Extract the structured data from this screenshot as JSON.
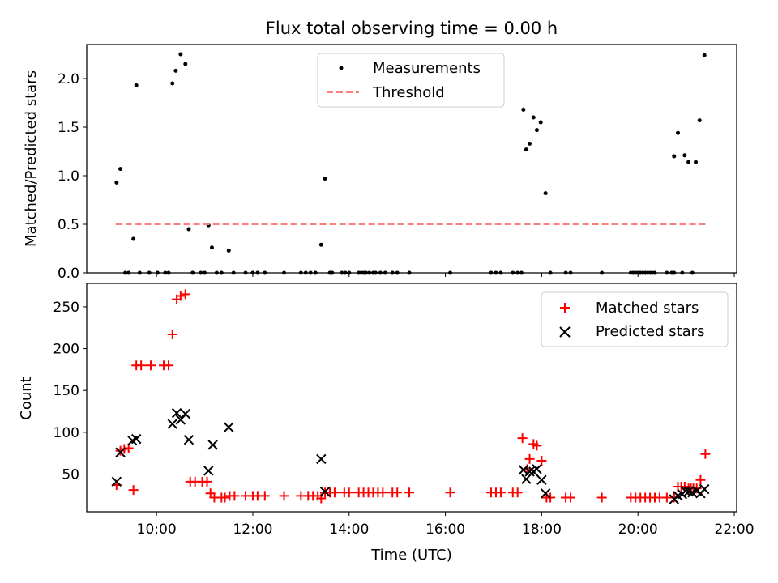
{
  "figure": {
    "title": "Flux total observing time = 0.00 h",
    "xlabel": "Time (UTC)",
    "x_ticks": [
      "10:00",
      "12:00",
      "14:00",
      "16:00",
      "18:00",
      "20:00",
      "22:00"
    ]
  },
  "chart_data": [
    {
      "type": "scatter",
      "ylabel": "Matched/Predicted stars",
      "xlim": [
        8.55,
        22.05
      ],
      "ylim": [
        0,
        2.35
      ],
      "y_ticks": [
        0.0,
        0.5,
        1.0,
        1.5,
        2.0
      ],
      "y_tick_labels": [
        "0.0",
        "0.5",
        "1.0",
        "1.5",
        "2.0"
      ],
      "legend_position": "top-center",
      "legend": [
        "Measurements",
        "Threshold"
      ],
      "series": [
        {
          "name": "Measurements",
          "marker": "dot",
          "color": "#000000",
          "points": [
            [
              9.17,
              0.93
            ],
            [
              9.25,
              1.07
            ],
            [
              9.35,
              0
            ],
            [
              9.42,
              0
            ],
            [
              9.52,
              0.35
            ],
            [
              9.58,
              1.93
            ],
            [
              9.65,
              0
            ],
            [
              9.85,
              0
            ],
            [
              10.02,
              0
            ],
            [
              10.18,
              0
            ],
            [
              10.25,
              0
            ],
            [
              10.33,
              1.95
            ],
            [
              10.4,
              2.08
            ],
            [
              10.5,
              2.25
            ],
            [
              10.6,
              2.15
            ],
            [
              10.67,
              0.45
            ],
            [
              10.75,
              0
            ],
            [
              10.92,
              0
            ],
            [
              11.0,
              0
            ],
            [
              11.08,
              0.49
            ],
            [
              11.15,
              0.26
            ],
            [
              11.25,
              0
            ],
            [
              11.35,
              0
            ],
            [
              11.5,
              0.23
            ],
            [
              11.6,
              0
            ],
            [
              11.85,
              0
            ],
            [
              12.0,
              0
            ],
            [
              12.1,
              0
            ],
            [
              12.25,
              0
            ],
            [
              12.65,
              0
            ],
            [
              13.0,
              0
            ],
            [
              13.1,
              0
            ],
            [
              13.2,
              0
            ],
            [
              13.3,
              0
            ],
            [
              13.42,
              0.29
            ],
            [
              13.5,
              0.97
            ],
            [
              13.6,
              0
            ],
            [
              13.65,
              0
            ],
            [
              13.85,
              0
            ],
            [
              13.92,
              0
            ],
            [
              14.0,
              0
            ],
            [
              14.2,
              0
            ],
            [
              14.25,
              0
            ],
            [
              14.3,
              0
            ],
            [
              14.35,
              0
            ],
            [
              14.42,
              0
            ],
            [
              14.5,
              0
            ],
            [
              14.55,
              0
            ],
            [
              14.65,
              0
            ],
            [
              14.75,
              0
            ],
            [
              14.9,
              0
            ],
            [
              15.0,
              0
            ],
            [
              15.25,
              0
            ],
            [
              16.1,
              0
            ],
            [
              16.95,
              0
            ],
            [
              17.05,
              0
            ],
            [
              17.15,
              0
            ],
            [
              17.4,
              0
            ],
            [
              17.5,
              0
            ],
            [
              17.58,
              0
            ],
            [
              17.62,
              1.68
            ],
            [
              17.68,
              1.27
            ],
            [
              17.75,
              1.33
            ],
            [
              17.83,
              1.6
            ],
            [
              17.9,
              1.47
            ],
            [
              17.98,
              1.55
            ],
            [
              18.08,
              0.82
            ],
            [
              18.18,
              0
            ],
            [
              18.5,
              0
            ],
            [
              18.6,
              0
            ],
            [
              19.25,
              0
            ],
            [
              19.85,
              0
            ],
            [
              19.9,
              0
            ],
            [
              19.95,
              0
            ],
            [
              20.0,
              0
            ],
            [
              20.05,
              0
            ],
            [
              20.1,
              0
            ],
            [
              20.15,
              0
            ],
            [
              20.2,
              0
            ],
            [
              20.25,
              0
            ],
            [
              20.3,
              0
            ],
            [
              20.35,
              0
            ],
            [
              20.6,
              0
            ],
            [
              20.7,
              0
            ],
            [
              20.75,
              0
            ],
            [
              20.75,
              1.2
            ],
            [
              20.83,
              1.44
            ],
            [
              20.92,
              0
            ],
            [
              20.97,
              1.21
            ],
            [
              21.05,
              1.14
            ],
            [
              21.13,
              0
            ],
            [
              21.2,
              1.14
            ],
            [
              21.28,
              1.57
            ],
            [
              21.38,
              2.24
            ]
          ]
        },
        {
          "name": "Threshold",
          "type": "line",
          "style": "dashed",
          "color": "#ff7f7f",
          "points": [
            [
              9.15,
              0.5
            ],
            [
              21.4,
              0.5
            ]
          ]
        }
      ]
    },
    {
      "type": "scatter",
      "ylabel": "Count",
      "xlim": [
        8.55,
        22.05
      ],
      "ylim": [
        5,
        278
      ],
      "y_ticks": [
        50,
        100,
        150,
        200,
        250
      ],
      "y_tick_labels": [
        "50",
        "100",
        "150",
        "200",
        "250"
      ],
      "legend_position": "top-right",
      "legend": [
        "Matched stars",
        "Predicted stars"
      ],
      "series": [
        {
          "name": "Matched stars",
          "marker": "plus",
          "color": "#ff0000",
          "points": [
            [
              9.17,
              37
            ],
            [
              9.25,
              78
            ],
            [
              9.33,
              80
            ],
            [
              9.42,
              81
            ],
            [
              9.52,
              31
            ],
            [
              9.58,
              180
            ],
            [
              9.68,
              180
            ],
            [
              9.88,
              180
            ],
            [
              10.15,
              180
            ],
            [
              10.25,
              180
            ],
            [
              10.33,
              217
            ],
            [
              10.42,
              259
            ],
            [
              10.5,
              263
            ],
            [
              10.6,
              265
            ],
            [
              10.7,
              41
            ],
            [
              10.8,
              41
            ],
            [
              10.95,
              41
            ],
            [
              11.05,
              41
            ],
            [
              11.12,
              27
            ],
            [
              11.2,
              22
            ],
            [
              11.35,
              22
            ],
            [
              11.42,
              22
            ],
            [
              11.52,
              24
            ],
            [
              11.62,
              24
            ],
            [
              11.85,
              24
            ],
            [
              12.0,
              24
            ],
            [
              12.1,
              24
            ],
            [
              12.25,
              24
            ],
            [
              12.65,
              24
            ],
            [
              13.0,
              24
            ],
            [
              13.15,
              24
            ],
            [
              13.25,
              24
            ],
            [
              13.35,
              24
            ],
            [
              13.42,
              21
            ],
            [
              13.5,
              28
            ],
            [
              13.6,
              28
            ],
            [
              13.7,
              28
            ],
            [
              13.9,
              28
            ],
            [
              14.0,
              28
            ],
            [
              14.2,
              28
            ],
            [
              14.3,
              28
            ],
            [
              14.4,
              28
            ],
            [
              14.5,
              28
            ],
            [
              14.6,
              28
            ],
            [
              14.7,
              28
            ],
            [
              14.9,
              28
            ],
            [
              15.0,
              28
            ],
            [
              15.25,
              28
            ],
            [
              16.1,
              28
            ],
            [
              16.95,
              28
            ],
            [
              17.05,
              28
            ],
            [
              17.15,
              28
            ],
            [
              17.4,
              28
            ],
            [
              17.5,
              28
            ],
            [
              17.6,
              93
            ],
            [
              17.7,
              56
            ],
            [
              17.75,
              68
            ],
            [
              17.83,
              86
            ],
            [
              17.9,
              84
            ],
            [
              18.0,
              66
            ],
            [
              18.1,
              22
            ],
            [
              18.18,
              22
            ],
            [
              18.5,
              22
            ],
            [
              18.6,
              22
            ],
            [
              19.25,
              22
            ],
            [
              19.85,
              22
            ],
            [
              19.95,
              22
            ],
            [
              20.05,
              22
            ],
            [
              20.15,
              22
            ],
            [
              20.25,
              22
            ],
            [
              20.35,
              22
            ],
            [
              20.45,
              22
            ],
            [
              20.6,
              22
            ],
            [
              20.75,
              22
            ],
            [
              20.83,
              35
            ],
            [
              20.9,
              35
            ],
            [
              20.97,
              35
            ],
            [
              21.05,
              33
            ],
            [
              21.1,
              33
            ],
            [
              21.15,
              33
            ],
            [
              21.22,
              33
            ],
            [
              21.3,
              43
            ],
            [
              21.4,
              74
            ]
          ]
        },
        {
          "name": "Predicted stars",
          "marker": "x",
          "color": "#000000",
          "points": [
            [
              9.17,
              41
            ],
            [
              9.25,
              76
            ],
            [
              9.5,
              90
            ],
            [
              9.58,
              92
            ],
            [
              10.33,
              110
            ],
            [
              10.42,
              123
            ],
            [
              10.5,
              115
            ],
            [
              10.6,
              122
            ],
            [
              10.67,
              91
            ],
            [
              11.08,
              54
            ],
            [
              11.17,
              85
            ],
            [
              11.5,
              106
            ],
            [
              13.42,
              68
            ],
            [
              13.5,
              29
            ],
            [
              17.62,
              55
            ],
            [
              17.68,
              44
            ],
            [
              17.75,
              53
            ],
            [
              17.83,
              53
            ],
            [
              17.9,
              56
            ],
            [
              18.0,
              43
            ],
            [
              18.08,
              27
            ],
            [
              20.75,
              20
            ],
            [
              20.83,
              24
            ],
            [
              20.92,
              26
            ],
            [
              20.98,
              30
            ],
            [
              21.05,
              29
            ],
            [
              21.13,
              28
            ],
            [
              21.22,
              30
            ],
            [
              21.3,
              27
            ],
            [
              21.38,
              32
            ]
          ]
        }
      ]
    }
  ]
}
